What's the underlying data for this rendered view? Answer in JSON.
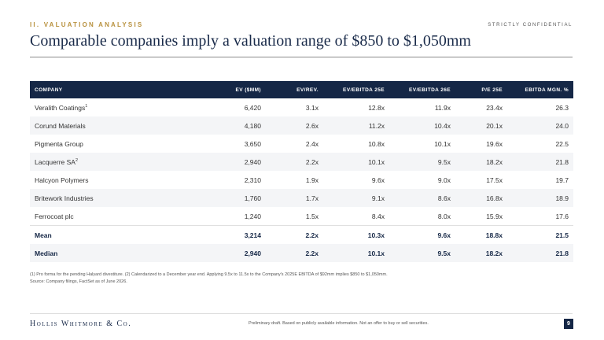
{
  "header": {
    "section_label": "II. VALUATION ANALYSIS",
    "confidential": "STRICTLY CONFIDENTIAL",
    "title": "Comparable companies imply a valuation range of $850 to $1,050mm"
  },
  "table": {
    "columns": [
      "COMPANY",
      "EV ($MM)",
      "EV/REV.",
      "EV/EBITDA 25E",
      "EV/EBITDA 26E",
      "P/E 25E",
      "EBITDA MGN. %"
    ],
    "rows": [
      {
        "company": "Veralith Coatings",
        "note": "1",
        "ev": "6,420",
        "ev_rev": "3.1x",
        "ev_ebitda_25e": "12.8x",
        "ev_ebitda_26e": "11.9x",
        "pe_25e": "23.4x",
        "ebitda_mgn": "26.3"
      },
      {
        "company": "Corund Materials",
        "note": "",
        "ev": "4,180",
        "ev_rev": "2.6x",
        "ev_ebitda_25e": "11.2x",
        "ev_ebitda_26e": "10.4x",
        "pe_25e": "20.1x",
        "ebitda_mgn": "24.0"
      },
      {
        "company": "Pigmenta Group",
        "note": "",
        "ev": "3,650",
        "ev_rev": "2.4x",
        "ev_ebitda_25e": "10.8x",
        "ev_ebitda_26e": "10.1x",
        "pe_25e": "19.6x",
        "ebitda_mgn": "22.5"
      },
      {
        "company": "Lacquerre SA",
        "note": "2",
        "ev": "2,940",
        "ev_rev": "2.2x",
        "ev_ebitda_25e": "10.1x",
        "ev_ebitda_26e": "9.5x",
        "pe_25e": "18.2x",
        "ebitda_mgn": "21.8"
      },
      {
        "company": "Halcyon Polymers",
        "note": "",
        "ev": "2,310",
        "ev_rev": "1.9x",
        "ev_ebitda_25e": "9.6x",
        "ev_ebitda_26e": "9.0x",
        "pe_25e": "17.5x",
        "ebitda_mgn": "19.7"
      },
      {
        "company": "Britework Industries",
        "note": "",
        "ev": "1,760",
        "ev_rev": "1.7x",
        "ev_ebitda_25e": "9.1x",
        "ev_ebitda_26e": "8.6x",
        "pe_25e": "16.8x",
        "ebitda_mgn": "18.9"
      },
      {
        "company": "Ferrocoat plc",
        "note": "",
        "ev": "1,240",
        "ev_rev": "1.5x",
        "ev_ebitda_25e": "8.4x",
        "ev_ebitda_26e": "8.0x",
        "pe_25e": "15.9x",
        "ebitda_mgn": "17.6"
      }
    ],
    "summary": [
      {
        "label": "Mean",
        "ev": "3,214",
        "ev_rev": "2.2x",
        "ev_ebitda_25e": "10.3x",
        "ev_ebitda_26e": "9.6x",
        "pe_25e": "18.8x",
        "ebitda_mgn": "21.5"
      },
      {
        "label": "Median",
        "ev": "2,940",
        "ev_rev": "2.2x",
        "ev_ebitda_25e": "10.1x",
        "ev_ebitda_26e": "9.5x",
        "pe_25e": "18.2x",
        "ebitda_mgn": "21.8"
      }
    ]
  },
  "footnotes": {
    "line1": "(1) Pro forma for the pending Halyard divestiture. (2) Calendarized to a December year end. Applying 9.5x to 11.5x to the Company's 2025E EBITDA of $92mm implies $850 to $1,050mm.",
    "line2": "Source: Company filings, FactSet as of June 2026."
  },
  "footer": {
    "firm": "Hollis Whitmore & Co.",
    "disclaimer": "Preliminary draft. Based on publicly available information. Not an offer to buy or sell securities.",
    "page_number": "9"
  },
  "colors": {
    "navy": "#152746",
    "gold": "#b8913e"
  }
}
